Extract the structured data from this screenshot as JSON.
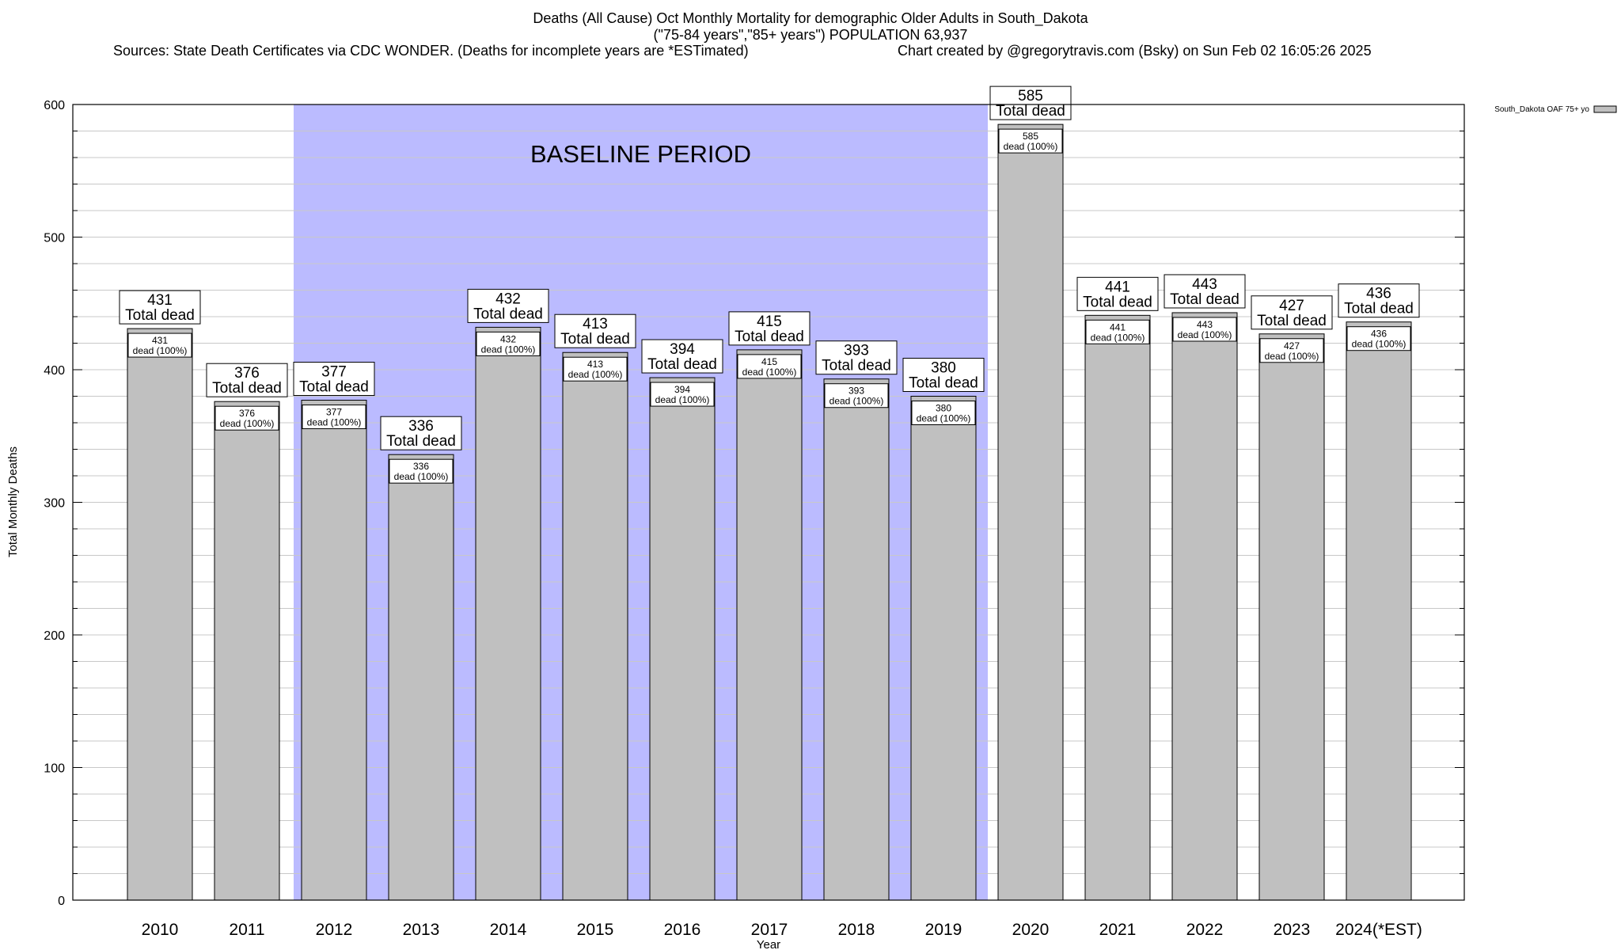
{
  "chart_data": {
    "type": "bar",
    "title": "Deaths (All Cause) Oct Monthly Mortality for demographic Older Adults in South_Dakota",
    "subtitle": "(\"75-84 years\",\"85+ years\") POPULATION 63,937",
    "sources": "Sources: State Death Certificates via CDC WONDER. (Deaths for incomplete years are *ESTimated)",
    "credit": "Chart created by @gregorytravis.com (Bsky) on Sun Feb 02 16:05:26 2025",
    "xlabel": "Year",
    "ylabel": "Total Monthly Deaths",
    "ylim": [
      0,
      600
    ],
    "yticks": [
      0,
      100,
      200,
      300,
      400,
      500,
      600
    ],
    "grid": true,
    "legend": {
      "position": "top-right",
      "label": "South_Dakota OAF 75+ yo"
    },
    "categories": [
      "2010",
      "2011",
      "2012",
      "2013",
      "2014",
      "2015",
      "2016",
      "2017",
      "2018",
      "2019",
      "2020",
      "2021",
      "2022",
      "2023",
      "2024(*EST)"
    ],
    "values": [
      431,
      376,
      377,
      336,
      432,
      413,
      394,
      415,
      393,
      380,
      585,
      441,
      443,
      427,
      436
    ],
    "bar_label_top_suffix": "Total dead",
    "bar_label_inner_suffix": "dead (100%)",
    "baseline": {
      "label": "BASELINE PERIOD",
      "start": "2012",
      "end": "2019"
    },
    "colors": {
      "bar": "#c0c0c0",
      "baseline": "#bbbbff",
      "grid": "#c8c8c8"
    }
  }
}
